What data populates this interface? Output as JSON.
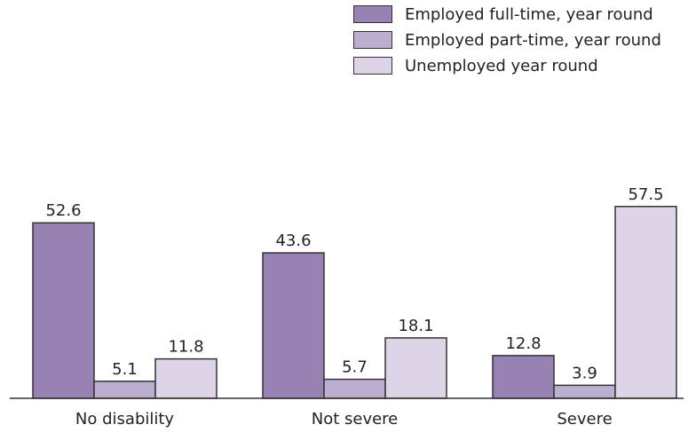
{
  "chart_data": {
    "type": "bar",
    "categories": [
      "No disability",
      "Not severe",
      "Severe"
    ],
    "series": [
      {
        "name": "Employed full-time, year round",
        "values": [
          52.6,
          43.6,
          12.8
        ],
        "color": "#9782b3"
      },
      {
        "name": "Employed part-time, year round",
        "values": [
          5.1,
          5.7,
          3.9
        ],
        "color": "#bcaed1"
      },
      {
        "name": "Unemployed year round",
        "values": [
          11.8,
          18.1,
          57.5
        ],
        "color": "#ddd5e7"
      }
    ],
    "data_labels": true,
    "ylim": [
      0,
      60
    ],
    "grid": false,
    "legend_position": "top-right",
    "bar_border_color": "#333333",
    "axis_color": "#333333"
  }
}
